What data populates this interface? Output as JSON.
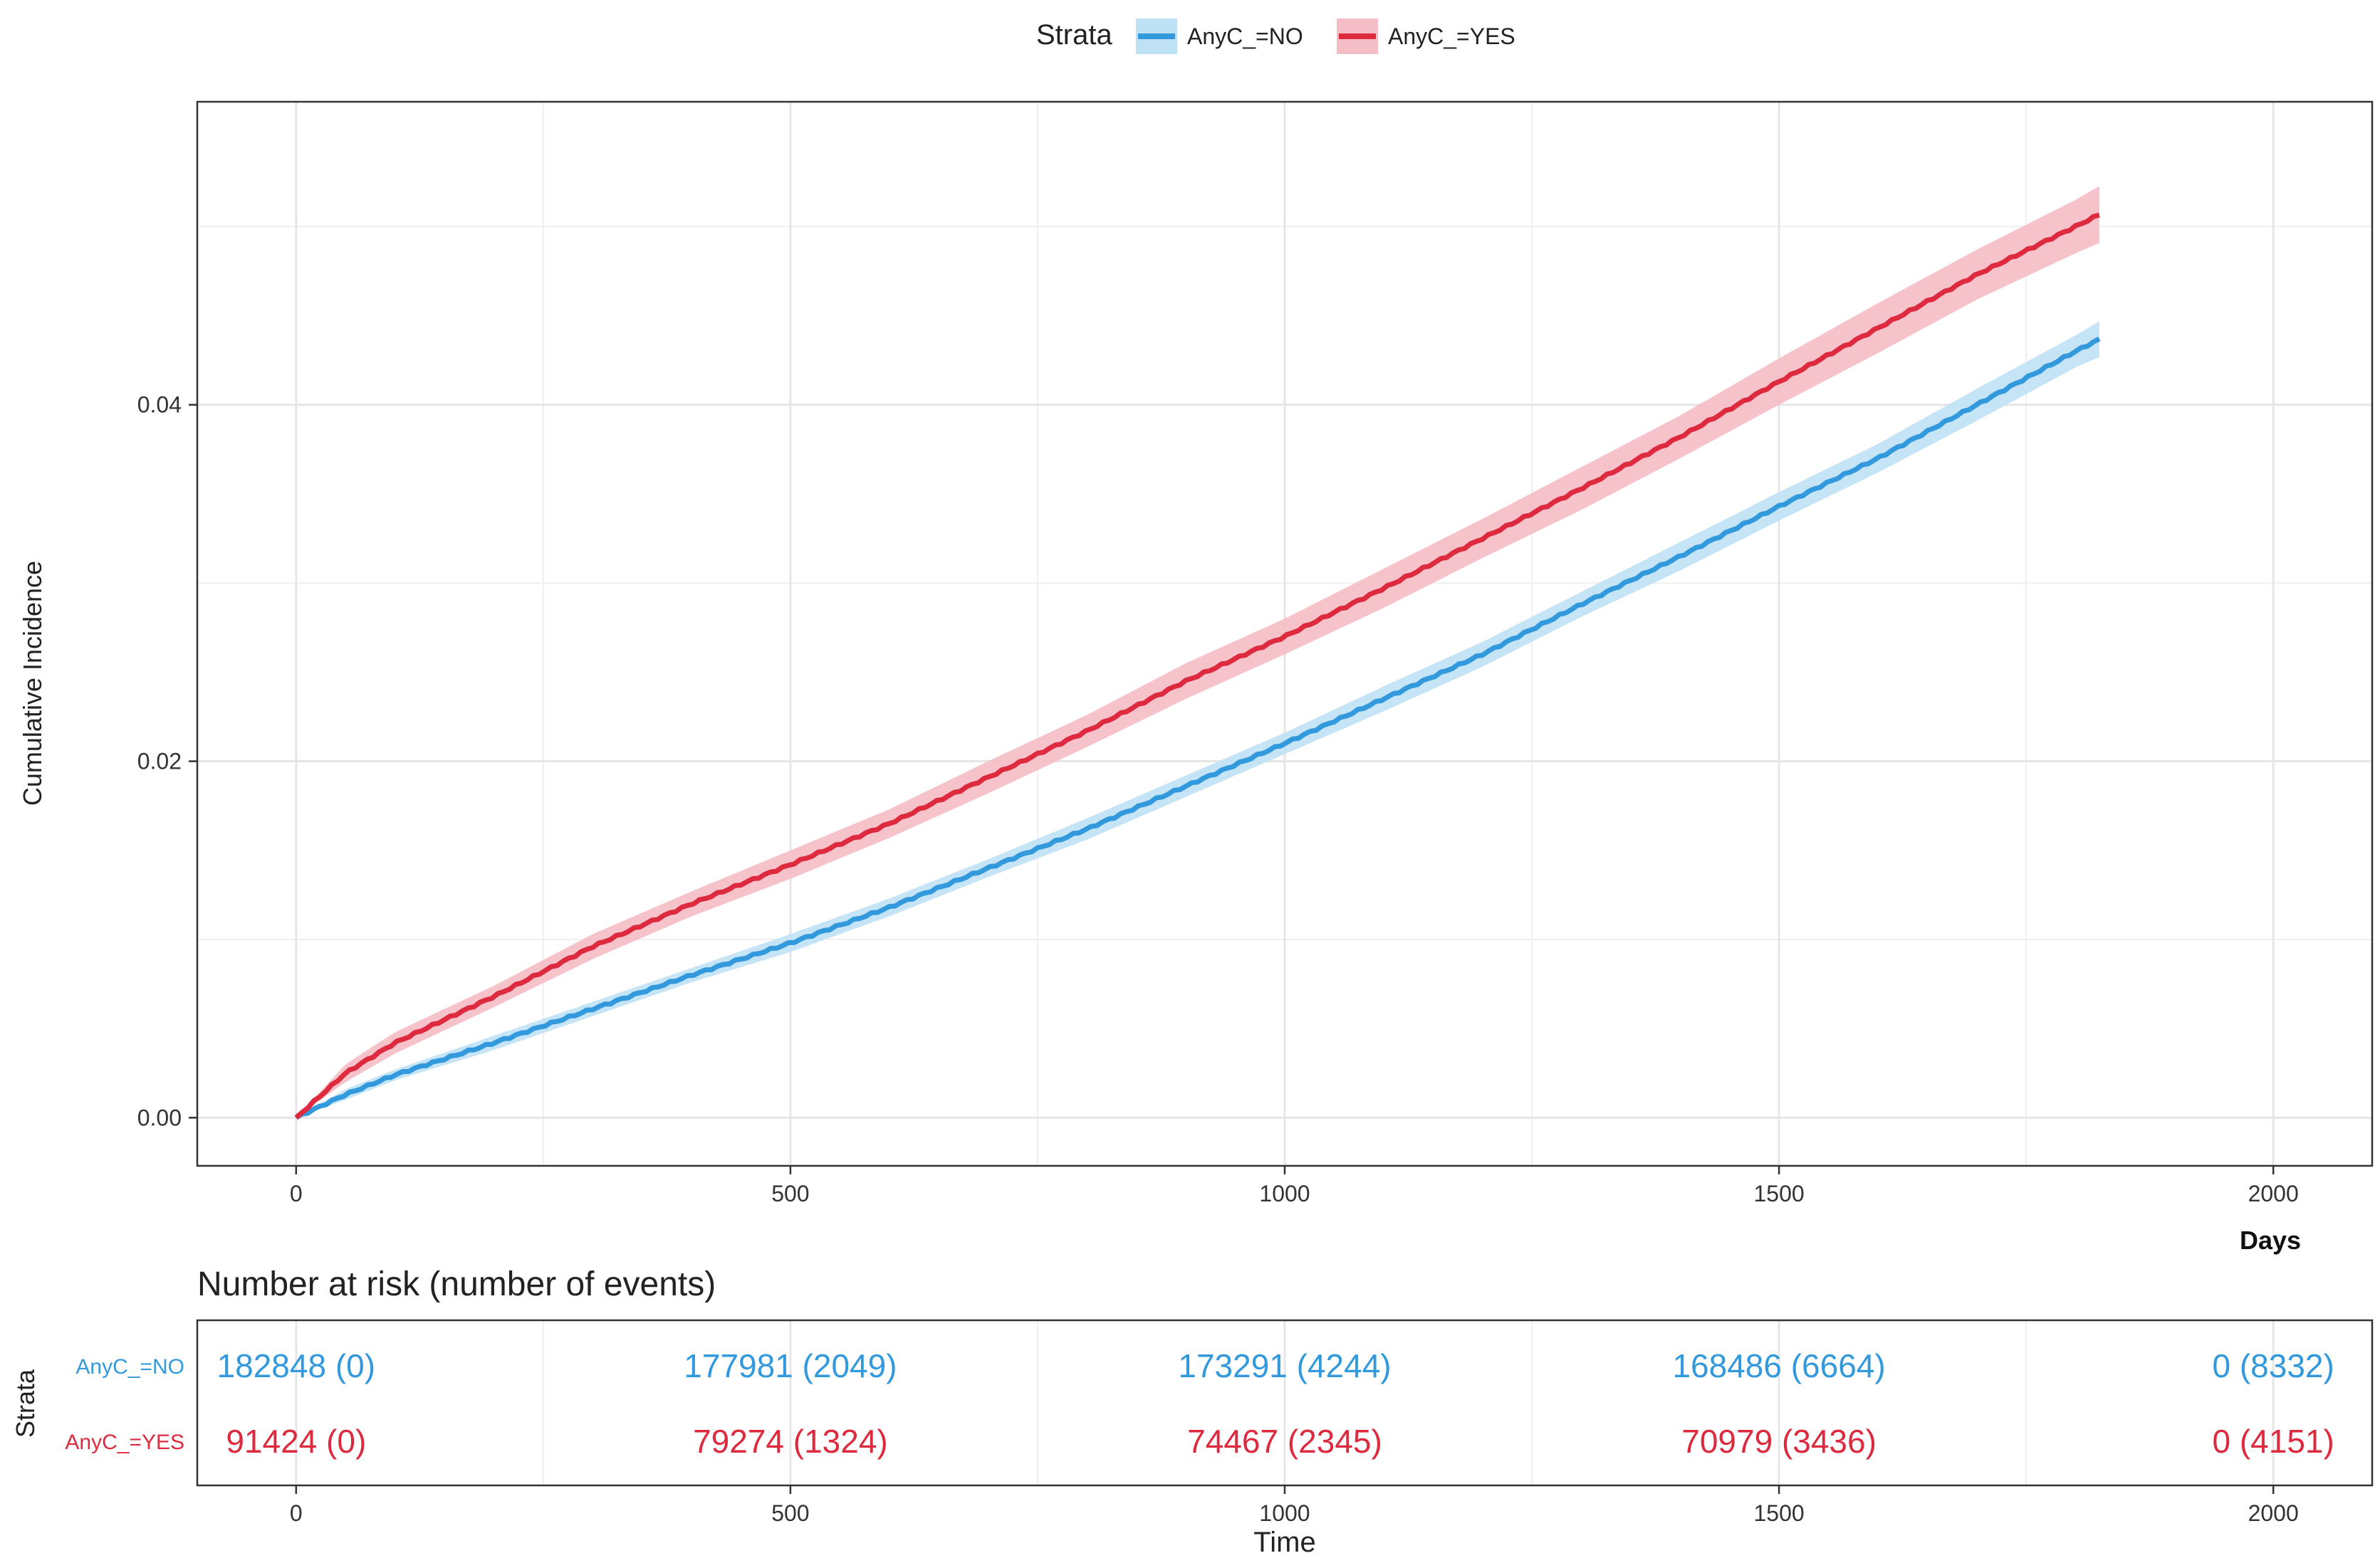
{
  "legend": {
    "title": "Strata",
    "items": [
      {
        "label": "AnyC_=NO",
        "color": "#3399DD",
        "fill": "#BFE1F5"
      },
      {
        "label": "AnyC_=YES",
        "color": "#DD2A3E",
        "fill": "#F5BDC5"
      }
    ]
  },
  "chart_data": {
    "type": "line",
    "ylabel": "Cumulative Incidence",
    "xlabel": "Days",
    "xlim": [
      -100,
      2100
    ],
    "ylim": [
      -0.0027,
      0.057
    ],
    "x_ticks": [
      0,
      500,
      1000,
      1500,
      2000
    ],
    "y_ticks": [
      0.0,
      0.02,
      0.04
    ],
    "y_tick_labels": [
      "0.00",
      "0.02",
      "0.04"
    ],
    "grid": true,
    "legend_position": "top",
    "series": [
      {
        "name": "AnyC_=NO",
        "color": "#3399DD",
        "band_color": "#BFE1F5",
        "x": [
          0,
          50,
          100,
          200,
          300,
          400,
          500,
          600,
          700,
          800,
          900,
          1000,
          1100,
          1200,
          1300,
          1400,
          1500,
          1600,
          1700,
          1800,
          1825
        ],
        "y": [
          0.0,
          0.0013,
          0.0024,
          0.0042,
          0.0061,
          0.008,
          0.0098,
          0.0118,
          0.014,
          0.0162,
          0.0186,
          0.021,
          0.0235,
          0.026,
          0.0288,
          0.0315,
          0.0343,
          0.037,
          0.04,
          0.043,
          0.0437
        ],
        "ci_halfwidth": [
          0.0,
          0.0003,
          0.0003,
          0.0004,
          0.0004,
          0.0004,
          0.0005,
          0.0005,
          0.0005,
          0.0006,
          0.0006,
          0.0006,
          0.0007,
          0.0007,
          0.0007,
          0.0008,
          0.0008,
          0.0008,
          0.0009,
          0.0009,
          0.001
        ]
      },
      {
        "name": "AnyC_=YES",
        "color": "#DD2A3E",
        "band_color": "#F5BDC5",
        "x": [
          0,
          50,
          100,
          200,
          300,
          400,
          500,
          600,
          700,
          800,
          900,
          1000,
          1100,
          1200,
          1300,
          1400,
          1500,
          1600,
          1700,
          1800,
          1825
        ],
        "y": [
          0.0,
          0.0025,
          0.0042,
          0.0068,
          0.0096,
          0.012,
          0.0142,
          0.0165,
          0.0191,
          0.0217,
          0.0245,
          0.027,
          0.0297,
          0.0325,
          0.0353,
          0.0382,
          0.0413,
          0.0443,
          0.0473,
          0.05,
          0.0507
        ],
        "ci_halfwidth": [
          0.0,
          0.0005,
          0.0006,
          0.0006,
          0.0007,
          0.0007,
          0.0008,
          0.0008,
          0.0009,
          0.0009,
          0.001,
          0.001,
          0.0011,
          0.0011,
          0.0012,
          0.0012,
          0.0013,
          0.0014,
          0.0014,
          0.0015,
          0.0016
        ]
      }
    ]
  },
  "risk_table": {
    "title": "Number at risk (number of events)",
    "strata_label": "Strata",
    "xlabel": "Time",
    "x_ticks": [
      0,
      500,
      1000,
      1500,
      2000
    ],
    "rows": [
      {
        "label": "AnyC_=NO",
        "color": "#3399DD",
        "cells": [
          "182848 (0)",
          "177981 (2049)",
          "173291 (4244)",
          "168486 (6664)",
          "0 (8332)"
        ]
      },
      {
        "label": "AnyC_=YES",
        "color": "#DD2A3E",
        "cells": [
          "91424 (0)",
          "79274 (1324)",
          "74467 (2345)",
          "70979 (3436)",
          "0 (4151)"
        ]
      }
    ]
  }
}
